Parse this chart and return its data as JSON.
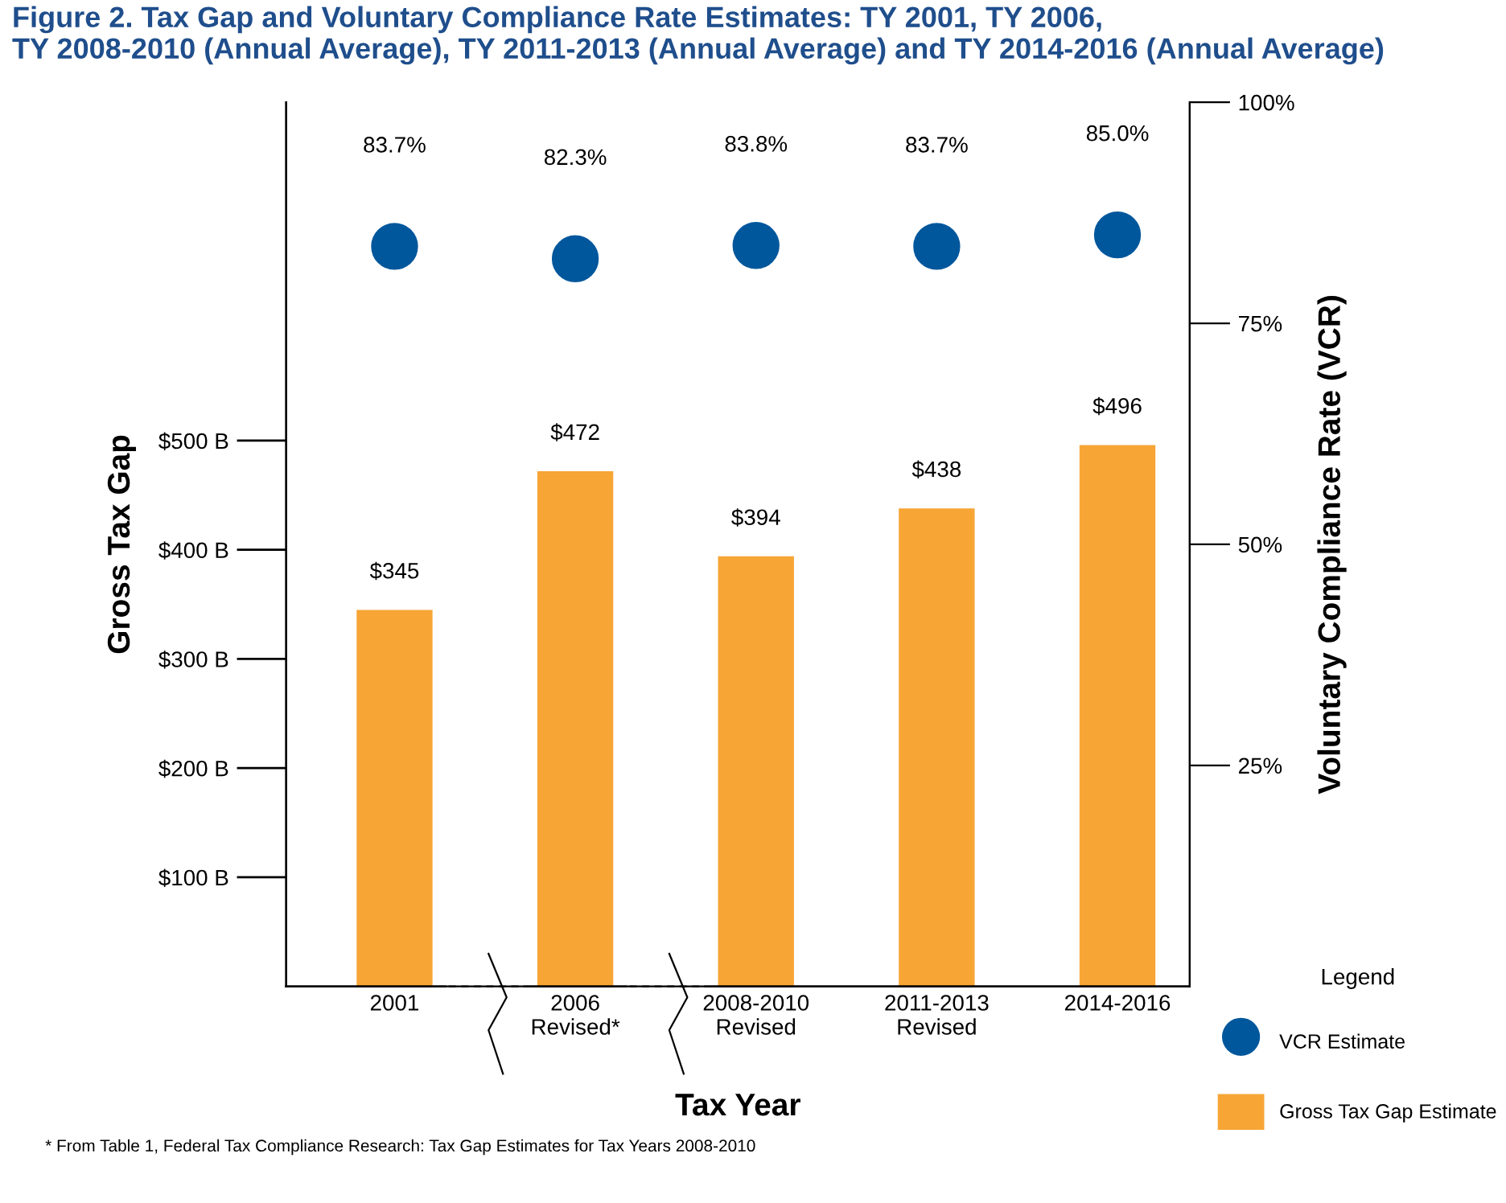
{
  "chart_data": {
    "type": "bar",
    "title": "Figure 2. Tax Gap and Voluntary Compliance Rate Estimates: TY 2001, TY 2006,\nTY 2008-2010 (Annual Average), TY 2011-2013 (Annual Average) and TY 2014-2016 (Annual Average)",
    "xlabel": "Tax Year",
    "ylabel": "Gross Tax Gap",
    "y2label": "Voluntary Compliance Rate (VCR)",
    "categories": [
      "2001",
      "2006\nRevised*",
      "2008-2010\nRevised",
      "2011-2013\nRevised",
      "2014-2016"
    ],
    "series": [
      {
        "name": "VCR Estimate",
        "type": "scatter",
        "axis": "y2",
        "color": "#00579c",
        "values": [
          83.7,
          82.3,
          83.8,
          83.7,
          85.0
        ],
        "value_labels": [
          "83.7%",
          "82.3%",
          "83.8%",
          "83.7%",
          "85.0%"
        ]
      },
      {
        "name": "Gross Tax Gap Estimate",
        "color": "#f7a535",
        "values": [
          345,
          472,
          394,
          438,
          496
        ],
        "value_labels": [
          "$345",
          "$472",
          "$394",
          "$438",
          "$496"
        ]
      }
    ],
    "ylim": [
      0,
      810
    ],
    "yticks": [
      {
        "value": 100,
        "label": "$100 B"
      },
      {
        "value": 200,
        "label": "$200 B"
      },
      {
        "value": 300,
        "label": "$300 B"
      },
      {
        "value": 400,
        "label": "$400 B"
      },
      {
        "value": 500,
        "label": "$500 B"
      }
    ],
    "y2lim": [
      0,
      100
    ],
    "y2ticks": [
      {
        "value": 25,
        "label": "25%"
      },
      {
        "value": 50,
        "label": "50%"
      },
      {
        "value": 75,
        "label": "75%"
      },
      {
        "value": 100,
        "label": "100%"
      }
    ],
    "legend": "bottom right",
    "legend_title": "Legend",
    "grid": false,
    "marker": "circle",
    "annotations": [
      "* From Table 1, Federal Tax Compliance Research: Tax Gap Estimates for Tax Years 2008-2010"
    ]
  }
}
